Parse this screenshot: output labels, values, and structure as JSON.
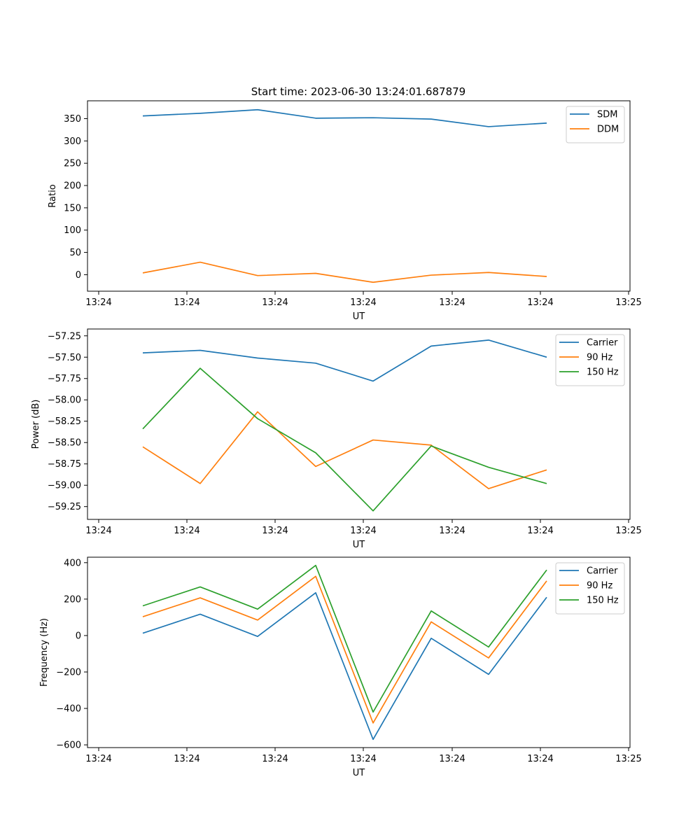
{
  "title": "Start time: 2023-06-30 13:24:01.687879",
  "colors": {
    "blue": "#1f77b4",
    "orange": "#ff7f0e",
    "green": "#2ca02c"
  },
  "chart_data": [
    {
      "type": "line",
      "xlabel": "UT",
      "ylabel": "Ratio",
      "x_tick_labels": [
        "13:24",
        "13:24",
        "13:24",
        "13:24",
        "13:24",
        "13:24",
        "13:25"
      ],
      "ylim": [
        -37,
        390
      ],
      "yticks": [
        0,
        50,
        100,
        150,
        200,
        250,
        300,
        350
      ],
      "ytick_labels": [
        "0",
        "50",
        "100",
        "150",
        "200",
        "250",
        "300",
        "350"
      ],
      "legend_position": "top-right",
      "series": [
        {
          "name": "SDM",
          "color": "#1f77b4",
          "values": [
            356,
            362,
            370,
            351,
            352,
            349,
            332,
            340
          ]
        },
        {
          "name": "DDM",
          "color": "#ff7f0e",
          "values": [
            4,
            28,
            -2,
            3,
            -17,
            -1,
            5,
            -4
          ]
        }
      ]
    },
    {
      "type": "line",
      "xlabel": "UT",
      "ylabel": "Power (dB)",
      "x_tick_labels": [
        "13:24",
        "13:24",
        "13:24",
        "13:24",
        "13:24",
        "13:24",
        "13:25"
      ],
      "ylim": [
        -59.4,
        -57.17
      ],
      "yticks": [
        -59.25,
        -59.0,
        -58.75,
        -58.5,
        -58.25,
        -58.0,
        -57.75,
        -57.5,
        -57.25
      ],
      "ytick_labels": [
        "−59.25",
        "−59.00",
        "−58.75",
        "−58.50",
        "−58.25",
        "−58.00",
        "−57.75",
        "−57.50",
        "−57.25"
      ],
      "legend_position": "top-right",
      "series": [
        {
          "name": "Carrier",
          "color": "#1f77b4",
          "values": [
            -57.45,
            -57.42,
            -57.51,
            -57.57,
            -57.78,
            -57.37,
            -57.3,
            -57.5
          ]
        },
        {
          "name": "90 Hz",
          "color": "#ff7f0e",
          "values": [
            -58.55,
            -58.98,
            -58.14,
            -58.78,
            -58.47,
            -58.53,
            -59.04,
            -58.82
          ]
        },
        {
          "name": "150 Hz",
          "color": "#2ca02c",
          "values": [
            -58.34,
            -57.63,
            -58.22,
            -58.62,
            -59.3,
            -58.54,
            -58.79,
            -58.98
          ]
        }
      ]
    },
    {
      "type": "line",
      "xlabel": "UT",
      "ylabel": "Frequency (Hz)",
      "x_tick_labels": [
        "13:24",
        "13:24",
        "13:24",
        "13:24",
        "13:24",
        "13:24",
        "13:25"
      ],
      "ylim": [
        -615,
        430
      ],
      "yticks": [
        -600,
        -400,
        -200,
        0,
        200,
        400
      ],
      "ytick_labels": [
        "−600",
        "−400",
        "−200",
        "0",
        "200",
        "400"
      ],
      "legend_position": "top-right",
      "series": [
        {
          "name": "Carrier",
          "color": "#1f77b4",
          "values": [
            13,
            117,
            -5,
            235,
            -570,
            -15,
            -213,
            210
          ]
        },
        {
          "name": "90 Hz",
          "color": "#ff7f0e",
          "values": [
            103,
            207,
            85,
            325,
            -480,
            75,
            -123,
            300
          ]
        },
        {
          "name": "150 Hz",
          "color": "#2ca02c",
          "values": [
            163,
            267,
            145,
            385,
            -420,
            135,
            -63,
            360
          ]
        }
      ]
    }
  ]
}
